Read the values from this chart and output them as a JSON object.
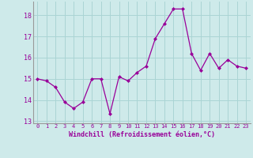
{
  "x": [
    0,
    1,
    2,
    3,
    4,
    5,
    6,
    7,
    8,
    9,
    10,
    11,
    12,
    13,
    14,
    15,
    16,
    17,
    18,
    19,
    20,
    21,
    22,
    23
  ],
  "y": [
    15.0,
    14.9,
    14.6,
    13.9,
    13.6,
    13.9,
    15.0,
    15.0,
    13.35,
    15.1,
    14.9,
    15.3,
    15.6,
    16.9,
    17.6,
    18.3,
    18.3,
    16.2,
    15.4,
    16.2,
    15.5,
    15.9,
    15.6,
    15.5
  ],
  "line_color": "#990099",
  "marker": "D",
  "marker_size": 2.0,
  "bg_color": "#ceeaea",
  "grid_color": "#aad4d4",
  "xlabel": "Windchill (Refroidissement éolien,°C)",
  "xlabel_color": "#990099",
  "tick_color": "#990099",
  "ylim": [
    12.9,
    18.65
  ],
  "yticks": [
    13,
    14,
    15,
    16,
    17,
    18
  ],
  "xticks": [
    0,
    1,
    2,
    3,
    4,
    5,
    6,
    7,
    8,
    9,
    10,
    11,
    12,
    13,
    14,
    15,
    16,
    17,
    18,
    19,
    20,
    21,
    22,
    23
  ],
  "font_family": "monospace",
  "line_width": 0.9,
  "spine_color": "#999999"
}
